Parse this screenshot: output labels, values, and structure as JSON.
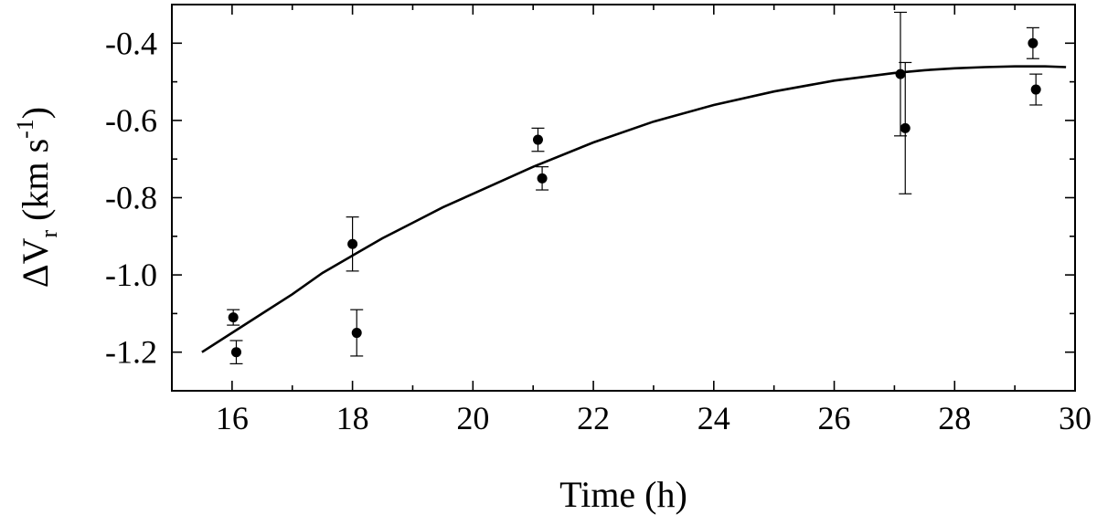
{
  "chart_data": {
    "type": "scatter",
    "title": "",
    "xlabel": "Time (h)",
    "ylabel": {
      "prefix": "ΔV",
      "subscript": "r",
      "unit_open": " (km s",
      "superscript": "-1",
      "unit_close": ")"
    },
    "xlim": [
      15,
      30
    ],
    "ylim": [
      -1.3,
      -0.3
    ],
    "x_ticks_major": [
      16,
      18,
      20,
      22,
      24,
      26,
      28,
      30
    ],
    "x_ticks_minor": [
      15,
      17,
      19,
      21,
      23,
      25,
      27,
      29
    ],
    "y_ticks_major": [
      -0.4,
      -0.6,
      -0.8,
      -1.0,
      -1.2
    ],
    "y_tick_labels": [
      "-0.4",
      "-0.6",
      "-0.8",
      "-1.0",
      "-1.2"
    ],
    "y_ticks_minor": [
      -0.3,
      -0.5,
      -0.7,
      -0.9,
      -1.1,
      -1.3
    ],
    "grid": false,
    "points": [
      {
        "x": 16.02,
        "y": -1.11,
        "err": 0.02
      },
      {
        "x": 16.07,
        "y": -1.2,
        "err": 0.03
      },
      {
        "x": 18.0,
        "y": -0.92,
        "err": 0.07
      },
      {
        "x": 18.07,
        "y": -1.15,
        "err": 0.06
      },
      {
        "x": 21.08,
        "y": -0.65,
        "err": 0.03
      },
      {
        "x": 21.15,
        "y": -0.75,
        "err": 0.03
      },
      {
        "x": 27.1,
        "y": -0.48,
        "err": 0.16
      },
      {
        "x": 27.18,
        "y": -0.62,
        "err": 0.17
      },
      {
        "x": 29.3,
        "y": -0.4,
        "err": 0.04
      },
      {
        "x": 29.35,
        "y": -0.52,
        "err": 0.04
      }
    ],
    "fit_curve": {
      "x": [
        15.5,
        16.0,
        16.5,
        17.0,
        17.5,
        18.0,
        18.5,
        19.0,
        19.5,
        20.0,
        21.0,
        22.0,
        23.0,
        24.0,
        25.0,
        26.0,
        27.0,
        27.5,
        28.0,
        28.5,
        29.0,
        29.5,
        29.85
      ],
      "y": [
        -1.2,
        -1.15,
        -1.1,
        -1.05,
        -0.995,
        -0.95,
        -0.905,
        -0.865,
        -0.825,
        -0.79,
        -0.72,
        -0.657,
        -0.603,
        -0.56,
        -0.525,
        -0.497,
        -0.477,
        -0.47,
        -0.465,
        -0.462,
        -0.46,
        -0.46,
        -0.462
      ]
    }
  }
}
